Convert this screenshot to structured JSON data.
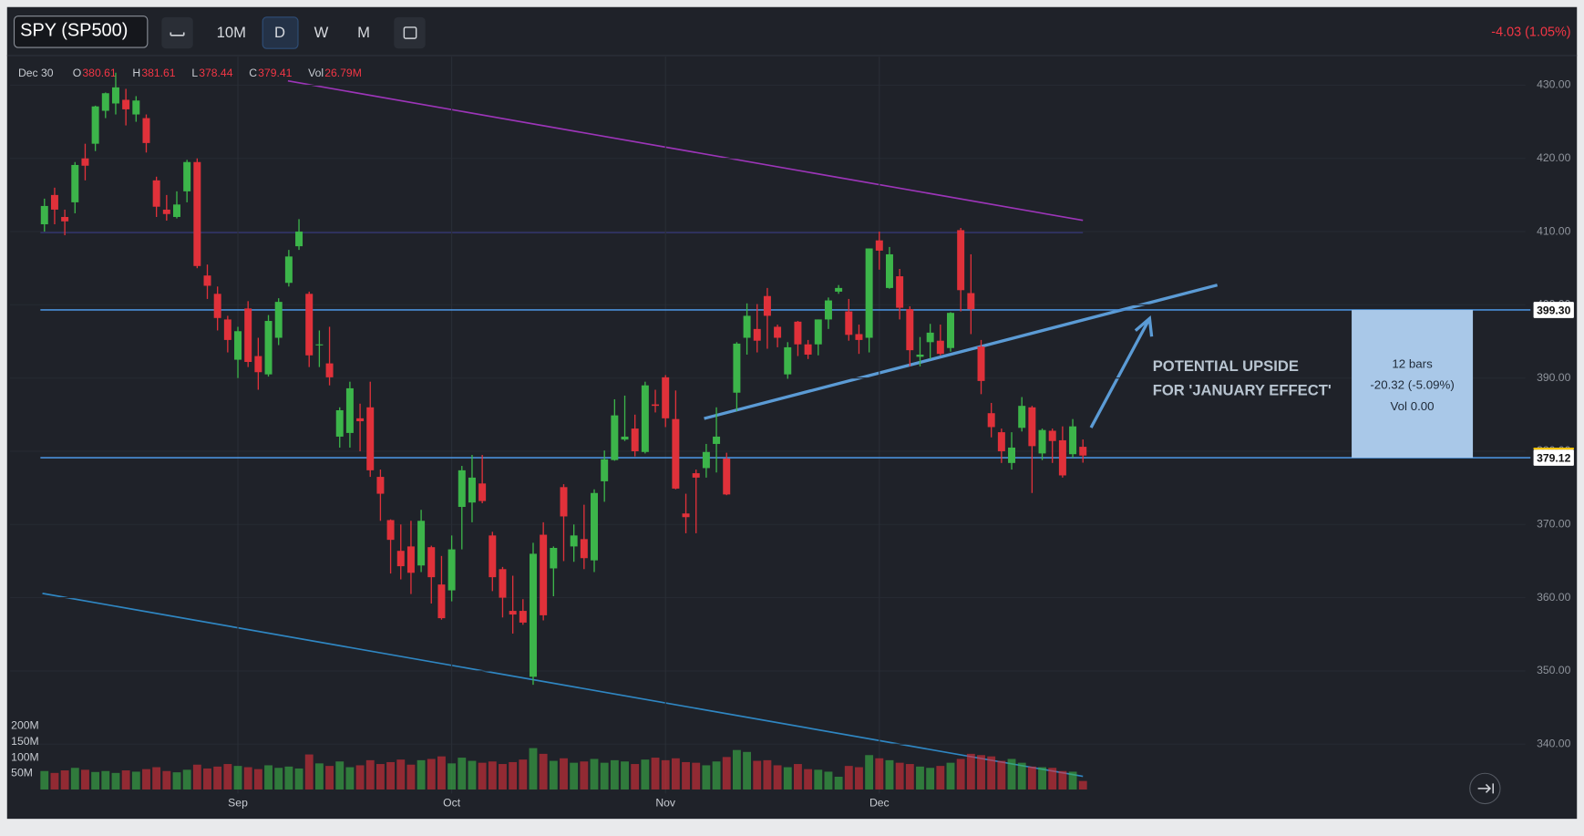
{
  "toolbar": {
    "symbol": "SPY (SP500)",
    "intervals": [
      "10M",
      "D",
      "W",
      "M"
    ],
    "change": "-4.03 (1.05%)"
  },
  "header": {
    "date": "Dec 30",
    "items": [
      {
        "label": "O",
        "value": "380.61"
      },
      {
        "label": "H",
        "value": "381.61"
      },
      {
        "label": "L",
        "value": "378.44"
      },
      {
        "label": "C",
        "value": "379.41"
      },
      {
        "label": "Vol",
        "value": "26.79M"
      }
    ]
  },
  "annotation": [
    "POTENTIAL UPSIDE",
    "FOR 'JANUARY EFFECT'"
  ],
  "measure": [
    "12 bars",
    "-20.32 (-5.09%)",
    "Vol 0.00"
  ],
  "chart_data": {
    "type": "candlestick",
    "categories": [
      null,
      null,
      null,
      null,
      null,
      null,
      null,
      null,
      null,
      null,
      null,
      null,
      null,
      null,
      null,
      null,
      null,
      null,
      null,
      "Sep",
      null,
      null,
      null,
      null,
      null,
      null,
      null,
      null,
      null,
      null,
      null,
      null,
      null,
      null,
      null,
      null,
      null,
      null,
      null,
      null,
      "Oct",
      null,
      null,
      null,
      null,
      null,
      null,
      null,
      null,
      null,
      null,
      null,
      null,
      null,
      null,
      null,
      null,
      null,
      null,
      null,
      null,
      "Nov",
      null,
      null,
      null,
      null,
      null,
      null,
      null,
      null,
      null,
      null,
      null,
      null,
      null,
      null,
      null,
      null,
      null,
      null,
      null,
      null,
      "Dec",
      null,
      null,
      null,
      null,
      null,
      null,
      null,
      null,
      null,
      null,
      null,
      null,
      null,
      null,
      null,
      null,
      null,
      null,
      null,
      null
    ],
    "open": [
      411,
      415,
      412,
      414,
      420,
      422,
      426.5,
      427.5,
      428,
      426,
      425.5,
      417,
      413,
      412,
      415.5,
      419.5,
      404,
      401.5,
      398,
      392.5,
      399.5,
      393,
      390.5,
      395.5,
      403,
      408,
      401.5,
      394.5,
      392,
      382,
      382.5,
      384.5,
      386,
      376.5,
      370.6,
      366.4,
      367,
      364.4,
      366.9,
      361.8,
      361,
      372.4,
      373,
      375.6,
      368.5,
      363.9,
      358.2,
      358.2,
      349.2,
      368.6,
      364,
      375.1,
      367,
      368,
      365.1,
      375.9,
      378.8,
      381.6,
      383.1,
      379.9,
      386.4,
      390.1,
      384.4,
      371.5,
      377,
      377.7,
      381,
      379,
      388,
      395.5,
      396.7,
      401.2,
      397,
      390.5,
      397.7,
      394.6,
      394.6,
      398,
      401.8,
      399.1,
      396,
      395.5,
      408.8,
      402.3,
      403.9,
      399.4,
      392.9,
      394.9,
      395.1,
      394.1,
      410.2,
      401.6,
      394.3,
      385.2,
      382.6,
      378.4,
      383.2,
      386,
      379.7,
      382.8,
      381.5,
      379.6,
      380.61
    ],
    "high": [
      414.5,
      416,
      413,
      419.5,
      422,
      427.2,
      429,
      431.7,
      429.5,
      428.5,
      426,
      417.5,
      415,
      415.5,
      419.8,
      420,
      405.5,
      402.5,
      398.5,
      397,
      400.5,
      395.5,
      398.6,
      400.9,
      407.5,
      411.7,
      401.8,
      396.5,
      397,
      386,
      389.5,
      386.5,
      389.5,
      377.5,
      370.7,
      370,
      370.5,
      372,
      367.1,
      365.7,
      368.5,
      378,
      379.5,
      379.5,
      369,
      364.2,
      363,
      359.8,
      367.5,
      370.3,
      367,
      375.5,
      370,
      372.7,
      374.8,
      380.1,
      387.1,
      387.6,
      385,
      389.5,
      388.4,
      390.4,
      388.3,
      374.2,
      377.5,
      381,
      386,
      379.8,
      394.9,
      400.2,
      400.1,
      402.3,
      397.3,
      394.9,
      397.8,
      395.2,
      398,
      401,
      402.7,
      400.8,
      397.3,
      407.7,
      410,
      407.9,
      404.9,
      399.8,
      395.6,
      397.4,
      397.3,
      399,
      410.5,
      406.9,
      395.2,
      386.6,
      383.1,
      382.6,
      387.4,
      386.2,
      383.1,
      383.1,
      383.4,
      384.4,
      381.61
    ],
    "low": [
      410,
      411,
      409.5,
      412.5,
      417,
      421,
      425.5,
      426,
      424.5,
      425,
      420.8,
      412,
      411.5,
      411.8,
      414,
      405,
      400.8,
      396.5,
      393.5,
      390,
      391.5,
      388.4,
      390.2,
      394.5,
      402.5,
      407.5,
      391.5,
      391.5,
      389,
      380.5,
      380.5,
      380,
      376.5,
      370.5,
      363.3,
      362.5,
      360.5,
      363.5,
      359.2,
      357,
      359.5,
      366.6,
      370.3,
      372.9,
      360.9,
      357.3,
      355.1,
      356.3,
      348.1,
      356.9,
      360.2,
      365,
      364.9,
      363.9,
      363.5,
      373.1,
      378.7,
      381.4,
      379.3,
      379.7,
      385.3,
      383.3,
      374.8,
      368.8,
      368.8,
      376.4,
      377.1,
      374,
      385.5,
      393.2,
      393.5,
      394,
      394.2,
      389.9,
      393,
      392.6,
      393.1,
      396.7,
      401.5,
      395.1,
      393.3,
      393.5,
      404.8,
      402.2,
      398,
      391.6,
      391.6,
      392.6,
      393.1,
      393.6,
      399.1,
      396,
      387.8,
      381.9,
      378.4,
      377.5,
      382.7,
      374.3,
      378.8,
      378.4,
      376.4,
      379.1,
      378.44
    ],
    "close": [
      413.5,
      413,
      411.4,
      419.1,
      419,
      427.1,
      428.9,
      429.7,
      426.7,
      427.9,
      422.1,
      413.4,
      412.4,
      413.7,
      419.5,
      405.3,
      402.6,
      398.2,
      395.2,
      396.4,
      392.2,
      390.8,
      397.8,
      400.4,
      406.6,
      410,
      393.1,
      394.6,
      390.1,
      385.6,
      388.6,
      384.1,
      377.4,
      374.2,
      367.9,
      364.3,
      363.4,
      370.5,
      362.8,
      357.2,
      366.6,
      377.4,
      376.4,
      373.2,
      362.8,
      360,
      357.7,
      356.6,
      366,
      357.6,
      366.8,
      371.1,
      368.5,
      365.4,
      374.3,
      378.9,
      384.9,
      382,
      380,
      389,
      386.2,
      384.5,
      374.9,
      371,
      376.4,
      379.9,
      382,
      374.1,
      394.7,
      398.5,
      395.1,
      398.5,
      395.5,
      394.2,
      394.6,
      393.2,
      398,
      400.6,
      402.3,
      395.9,
      395.2,
      407.7,
      407.4,
      406.9,
      399.6,
      393.8,
      393.2,
      396.2,
      393.3,
      398.9,
      402,
      399.4,
      389.6,
      383.3,
      380,
      380.5,
      386.2,
      380.7,
      382.9,
      381.4,
      376.7,
      383.4,
      379.41
    ],
    "volume": [
      58,
      52,
      60,
      68,
      62,
      55,
      58,
      52,
      60,
      56,
      64,
      70,
      58,
      54,
      62,
      78,
      66,
      72,
      80,
      74,
      70,
      64,
      76,
      68,
      72,
      66,
      110,
      82,
      74,
      88,
      70,
      76,
      92,
      80,
      86,
      94,
      78,
      92,
      96,
      104,
      82,
      100,
      90,
      84,
      88,
      80,
      86,
      94,
      130,
      112,
      90,
      98,
      84,
      88,
      96,
      84,
      92,
      88,
      80,
      94,
      100,
      92,
      98,
      86,
      84,
      76,
      88,
      102,
      124,
      118,
      90,
      92,
      76,
      70,
      80,
      64,
      62,
      56,
      40,
      74,
      70,
      108,
      98,
      92,
      84,
      80,
      72,
      68,
      74,
      84,
      96,
      112,
      108,
      104,
      90,
      96,
      84,
      72,
      70,
      68,
      58,
      56,
      26.79
    ],
    "ylim": [
      329.8,
      433.9
    ],
    "yticks": [
      {
        "value": 340,
        "label": "340.00"
      },
      {
        "value": 350,
        "label": "350.00"
      },
      {
        "value": 360,
        "label": "360.00"
      },
      {
        "value": 370,
        "label": "370.00"
      },
      {
        "value": 380,
        "label": "380.00"
      },
      {
        "value": 390,
        "label": "390.00"
      },
      {
        "value": 400,
        "label": "400.00"
      },
      {
        "value": 410,
        "label": "410.00"
      },
      {
        "value": 420,
        "label": "420.00"
      },
      {
        "value": 430,
        "label": "430.00"
      }
    ],
    "vlim": [
      0,
      200
    ],
    "vticks": [
      {
        "value": 50,
        "label": "50M"
      },
      {
        "value": 100,
        "label": "100M"
      },
      {
        "value": 150,
        "label": "150M"
      },
      {
        "value": 200,
        "label": "200M"
      }
    ],
    "price_lines": [
      {
        "value": 399.3,
        "label": "399.30"
      },
      {
        "value": 379.12,
        "label": "379.12"
      }
    ],
    "up_color": "#3cb54a",
    "down_color": "#e0313a",
    "grid": true
  }
}
